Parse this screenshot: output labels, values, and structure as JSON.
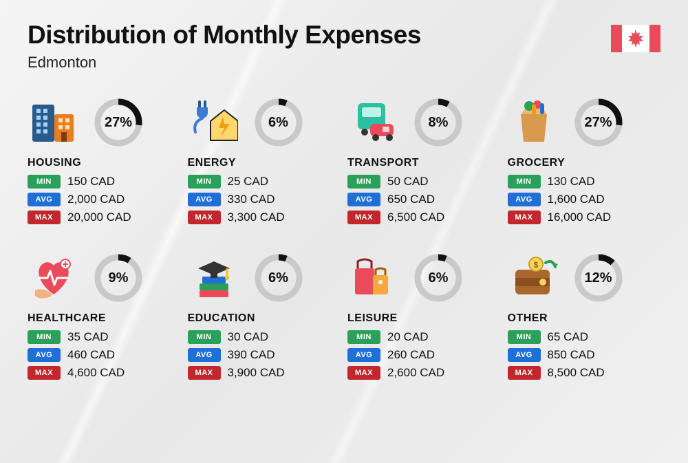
{
  "title": "Distribution of Monthly Expenses",
  "subtitle": "Edmonton",
  "currency": "CAD",
  "colors": {
    "min": "#2aa05a",
    "avg": "#1f6fd6",
    "max": "#c1272d",
    "donut_track": "#c9c9c9",
    "donut_fill": "#111111",
    "flag": "#e94b5a",
    "text": "#111111"
  },
  "donut": {
    "radius": 30,
    "stroke_width": 9
  },
  "labels": {
    "min": "MIN",
    "avg": "AVG",
    "max": "MAX"
  },
  "categories": [
    {
      "id": "housing",
      "name": "HOUSING",
      "pct": 27,
      "min": "150",
      "avg": "2,000",
      "max": "20,000",
      "icon": "buildings"
    },
    {
      "id": "energy",
      "name": "ENERGY",
      "pct": 6,
      "min": "25",
      "avg": "330",
      "max": "3,300",
      "icon": "energy"
    },
    {
      "id": "transport",
      "name": "TRANSPORT",
      "pct": 8,
      "min": "50",
      "avg": "650",
      "max": "6,500",
      "icon": "transport"
    },
    {
      "id": "grocery",
      "name": "GROCERY",
      "pct": 27,
      "min": "130",
      "avg": "1,600",
      "max": "16,000",
      "icon": "grocery"
    },
    {
      "id": "healthcare",
      "name": "HEALTHCARE",
      "pct": 9,
      "min": "35",
      "avg": "460",
      "max": "4,600",
      "icon": "healthcare"
    },
    {
      "id": "education",
      "name": "EDUCATION",
      "pct": 6,
      "min": "30",
      "avg": "390",
      "max": "3,900",
      "icon": "education"
    },
    {
      "id": "leisure",
      "name": "LEISURE",
      "pct": 6,
      "min": "20",
      "avg": "260",
      "max": "2,600",
      "icon": "leisure"
    },
    {
      "id": "other",
      "name": "OTHER",
      "pct": 12,
      "min": "65",
      "avg": "850",
      "max": "8,500",
      "icon": "wallet"
    }
  ]
}
